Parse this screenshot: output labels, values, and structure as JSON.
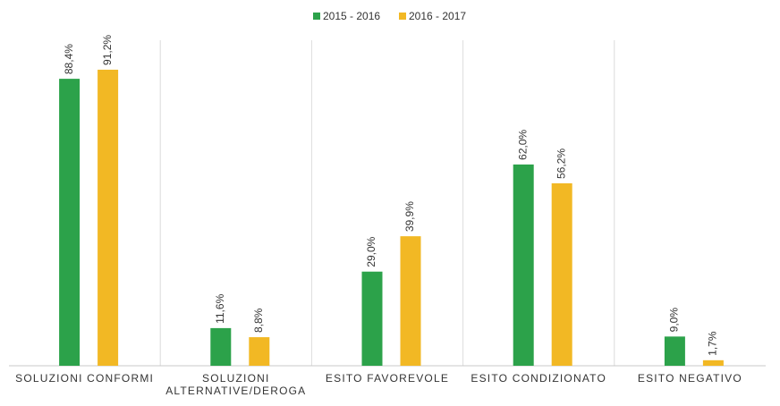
{
  "chart_data": {
    "type": "bar",
    "categories": [
      "SOLUZIONI CONFORMI",
      "SOLUZIONI ALTERNATIVE/DEROGA",
      "ESITO FAVOREVOLE",
      "ESITO CONDIZIONATO",
      "ESITO NEGATIVO"
    ],
    "series": [
      {
        "name": "2015 - 2016",
        "color": "#2ca24a",
        "values": [
          88.4,
          11.6,
          29.0,
          62.0,
          9.0
        ],
        "value_labels": [
          "88,4%",
          "11,6%",
          "29,0%",
          "62,0%",
          "9,0%"
        ]
      },
      {
        "name": "2016 - 2017",
        "color": "#f2b824",
        "values": [
          91.2,
          8.8,
          39.9,
          56.2,
          1.7
        ],
        "value_labels": [
          "91,2%",
          "8,8%",
          "39,9%",
          "56,2%",
          "1,7%"
        ]
      }
    ],
    "ylim": [
      0,
      100
    ],
    "legend": "top"
  }
}
